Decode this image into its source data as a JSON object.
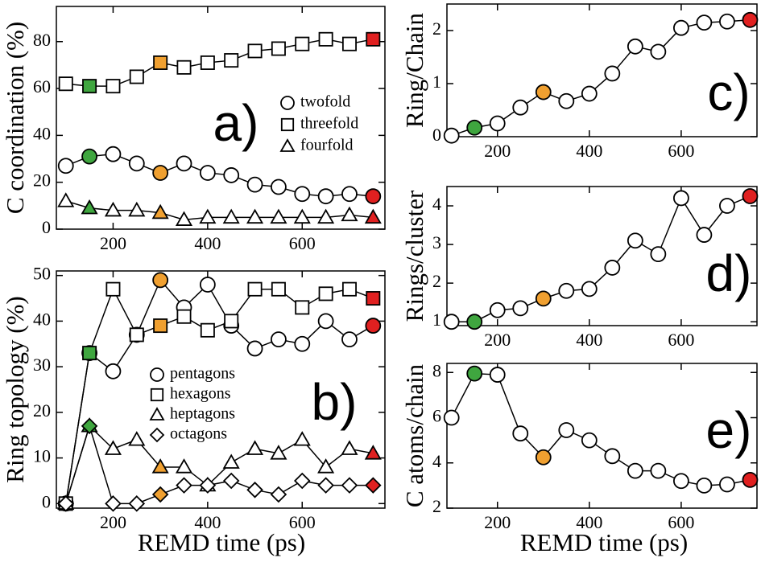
{
  "chart_data": [
    {
      "type": "line",
      "panel_label": "a)",
      "ylabel": "C coordination (%)",
      "x": [
        100,
        150,
        200,
        250,
        300,
        350,
        400,
        450,
        500,
        550,
        600,
        650,
        700,
        750
      ],
      "xlim": [
        80,
        775
      ],
      "xticks": [
        200,
        400,
        600
      ],
      "ylim": [
        0,
        95
      ],
      "yticks": [
        0,
        20,
        40,
        60,
        80
      ],
      "point_colors": [
        "#ffffff",
        "#3fa63f",
        "#ffffff",
        "#ffffff",
        "#f0a030",
        "#ffffff",
        "#ffffff",
        "#ffffff",
        "#ffffff",
        "#ffffff",
        "#ffffff",
        "#ffffff",
        "#ffffff",
        "#e02020"
      ],
      "series": [
        {
          "name": "twofold",
          "marker": "circle",
          "color": "#000000",
          "values": [
            27,
            31,
            32,
            28,
            24,
            28,
            24,
            23,
            19,
            18,
            15,
            14,
            15,
            14
          ]
        },
        {
          "name": "threefold",
          "marker": "square",
          "color": "#000000",
          "values": [
            62,
            61,
            61,
            65,
            71,
            69,
            71,
            72,
            76,
            77,
            79,
            81,
            79,
            81
          ]
        },
        {
          "name": "fourfold",
          "marker": "triangle",
          "color": "#000000",
          "values": [
            12,
            9,
            8,
            8,
            7,
            4,
            5,
            5,
            5,
            5,
            5,
            5,
            6,
            5
          ]
        }
      ]
    },
    {
      "type": "line",
      "panel_label": "b)",
      "ylabel": "Ring topology (%)",
      "xlabel": "REMD time (ps)",
      "x": [
        100,
        150,
        200,
        250,
        300,
        350,
        400,
        450,
        500,
        550,
        600,
        650,
        700,
        750
      ],
      "xlim": [
        80,
        775
      ],
      "xticks": [
        200,
        400,
        600
      ],
      "ylim": [
        -1,
        51
      ],
      "yticks": [
        0,
        10,
        20,
        30,
        40,
        50
      ],
      "point_colors": [
        "#ffffff",
        "#3fa63f",
        "#ffffff",
        "#ffffff",
        "#f0a030",
        "#ffffff",
        "#ffffff",
        "#ffffff",
        "#ffffff",
        "#ffffff",
        "#ffffff",
        "#ffffff",
        "#ffffff",
        "#e02020"
      ],
      "series": [
        {
          "name": "pentagons",
          "marker": "circle",
          "color": "#000000",
          "values": [
            0,
            33,
            29,
            37,
            49,
            43,
            48,
            39,
            34,
            36,
            35,
            40,
            36,
            39
          ]
        },
        {
          "name": "hexagons",
          "marker": "square",
          "color": "#000000",
          "values": [
            0,
            33,
            47,
            37,
            39,
            41,
            38,
            40,
            47,
            47,
            43,
            46,
            47,
            45
          ]
        },
        {
          "name": "heptagons",
          "marker": "triangle",
          "color": "#000000",
          "values": [
            0,
            17,
            12,
            14,
            8,
            8,
            4,
            9,
            12,
            11,
            14,
            8,
            12,
            11
          ]
        },
        {
          "name": "octagons",
          "marker": "diamond",
          "color": "#000000",
          "values": [
            0,
            17,
            0,
            0,
            2,
            4,
            4,
            5,
            3,
            2,
            5,
            4,
            4,
            4
          ]
        }
      ]
    },
    {
      "type": "line",
      "panel_label": "c)",
      "ylabel": "Ring/Chain",
      "x": [
        100,
        150,
        200,
        250,
        300,
        350,
        400,
        450,
        500,
        550,
        600,
        650,
        700,
        750
      ],
      "xlim": [
        90,
        765
      ],
      "xticks": [
        200,
        400,
        600
      ],
      "ylim": [
        0,
        2.5
      ],
      "yticks": [
        0,
        1,
        2
      ],
      "point_colors": [
        "#ffffff",
        "#3fa63f",
        "#ffffff",
        "#ffffff",
        "#f0a030",
        "#ffffff",
        "#ffffff",
        "#ffffff",
        "#ffffff",
        "#ffffff",
        "#ffffff",
        "#ffffff",
        "#ffffff",
        "#e02020"
      ],
      "series": [
        {
          "marker": "circle",
          "color": "#000000",
          "values": [
            0.02,
            0.17,
            0.25,
            0.55,
            0.84,
            0.67,
            0.81,
            1.19,
            1.7,
            1.6,
            2.05,
            2.15,
            2.17,
            2.2
          ]
        }
      ]
    },
    {
      "type": "line",
      "panel_label": "d)",
      "ylabel": "Rings/cluster",
      "x": [
        100,
        150,
        200,
        250,
        300,
        350,
        400,
        450,
        500,
        550,
        600,
        650,
        700,
        750
      ],
      "xlim": [
        90,
        765
      ],
      "xticks": [
        200,
        400,
        600
      ],
      "ylim": [
        0.9,
        4.5
      ],
      "yticks": [
        1,
        2,
        3,
        4
      ],
      "point_colors": [
        "#ffffff",
        "#3fa63f",
        "#ffffff",
        "#ffffff",
        "#f0a030",
        "#ffffff",
        "#ffffff",
        "#ffffff",
        "#ffffff",
        "#ffffff",
        "#ffffff",
        "#ffffff",
        "#ffffff",
        "#e02020"
      ],
      "series": [
        {
          "marker": "circle",
          "color": "#000000",
          "values": [
            1,
            1,
            1.3,
            1.35,
            1.6,
            1.8,
            1.85,
            2.4,
            3.1,
            2.75,
            4.2,
            3.25,
            4.0,
            4.25
          ]
        }
      ]
    },
    {
      "type": "line",
      "panel_label": "e)",
      "ylabel": "C atoms/chain",
      "xlabel": "REMD time (ps)",
      "x": [
        100,
        150,
        200,
        250,
        300,
        350,
        400,
        450,
        500,
        550,
        600,
        650,
        700,
        750
      ],
      "xlim": [
        90,
        765
      ],
      "xticks": [
        200,
        400,
        600
      ],
      "ylim": [
        2,
        8.4
      ],
      "yticks": [
        2,
        4,
        6,
        8
      ],
      "point_colors": [
        "#ffffff",
        "#3fa63f",
        "#ffffff",
        "#ffffff",
        "#f0a030",
        "#ffffff",
        "#ffffff",
        "#ffffff",
        "#ffffff",
        "#ffffff",
        "#ffffff",
        "#ffffff",
        "#ffffff",
        "#e02020"
      ],
      "series": [
        {
          "marker": "circle",
          "color": "#000000",
          "values": [
            6,
            7.95,
            7.9,
            5.3,
            4.25,
            5.45,
            5,
            4.3,
            3.65,
            3.65,
            3.2,
            3.0,
            3.05,
            3.25
          ]
        }
      ]
    }
  ]
}
